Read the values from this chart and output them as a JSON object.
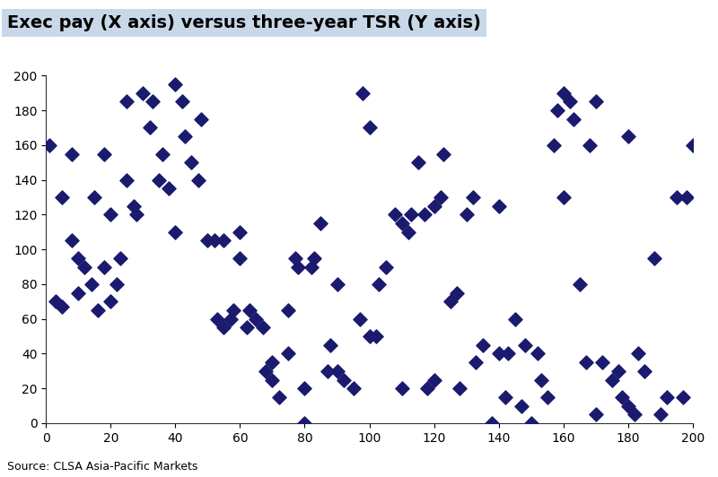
{
  "title": "Exec pay (X axis) versus three-year TSR (Y axis)",
  "source": "Source: CLSA Asia-Pacific Markets",
  "marker_color": "#1a1a6e",
  "marker_style": "D",
  "marker_size": 60,
  "xlim": [
    0,
    200
  ],
  "ylim": [
    0,
    200
  ],
  "xticks": [
    0,
    20,
    40,
    60,
    80,
    100,
    120,
    140,
    160,
    180,
    200
  ],
  "yticks": [
    0,
    20,
    40,
    60,
    80,
    100,
    120,
    140,
    160,
    180,
    200
  ],
  "background_color": "#ffffff",
  "title_bg_color": "#c8d8e8",
  "x_data": [
    1,
    3,
    5,
    5,
    8,
    8,
    10,
    10,
    12,
    14,
    15,
    16,
    18,
    18,
    20,
    20,
    22,
    23,
    25,
    25,
    27,
    28,
    30,
    32,
    33,
    35,
    36,
    38,
    40,
    40,
    42,
    43,
    45,
    47,
    48,
    50,
    52,
    53,
    55,
    55,
    57,
    58,
    60,
    60,
    62,
    63,
    65,
    67,
    68,
    70,
    70,
    72,
    75,
    75,
    77,
    78,
    80,
    80,
    82,
    83,
    85,
    87,
    88,
    90,
    90,
    92,
    95,
    97,
    98,
    100,
    100,
    102,
    103,
    105,
    108,
    110,
    110,
    112,
    113,
    115,
    117,
    118,
    120,
    120,
    122,
    123,
    125,
    127,
    128,
    130,
    132,
    133,
    135,
    138,
    140,
    140,
    142,
    143,
    145,
    147,
    148,
    150,
    152,
    153,
    155,
    157,
    158,
    160,
    160,
    162,
    163,
    165,
    167,
    168,
    170,
    170,
    172,
    175,
    177,
    178,
    180,
    180,
    182,
    183,
    185,
    188,
    190,
    192,
    195,
    197,
    198,
    200
  ],
  "y_data": [
    160,
    70,
    67,
    130,
    105,
    155,
    95,
    75,
    90,
    80,
    130,
    65,
    90,
    155,
    70,
    120,
    80,
    95,
    185,
    140,
    125,
    120,
    190,
    170,
    185,
    140,
    155,
    135,
    110,
    195,
    185,
    165,
    150,
    140,
    175,
    105,
    105,
    60,
    105,
    55,
    60,
    65,
    95,
    110,
    55,
    65,
    60,
    55,
    30,
    35,
    25,
    15,
    65,
    40,
    95,
    90,
    20,
    0,
    90,
    95,
    115,
    30,
    45,
    80,
    30,
    25,
    20,
    60,
    190,
    50,
    170,
    50,
    80,
    90,
    120,
    115,
    20,
    110,
    120,
    150,
    120,
    20,
    25,
    125,
    130,
    155,
    70,
    75,
    20,
    120,
    130,
    35,
    45,
    0,
    40,
    125,
    15,
    40,
    60,
    10,
    45,
    0,
    40,
    25,
    15,
    160,
    180,
    130,
    190,
    185,
    175,
    80,
    35,
    160,
    5,
    185,
    35,
    25,
    30,
    15,
    10,
    165,
    5,
    40,
    30,
    95,
    5,
    15,
    130,
    15,
    130,
    160
  ]
}
